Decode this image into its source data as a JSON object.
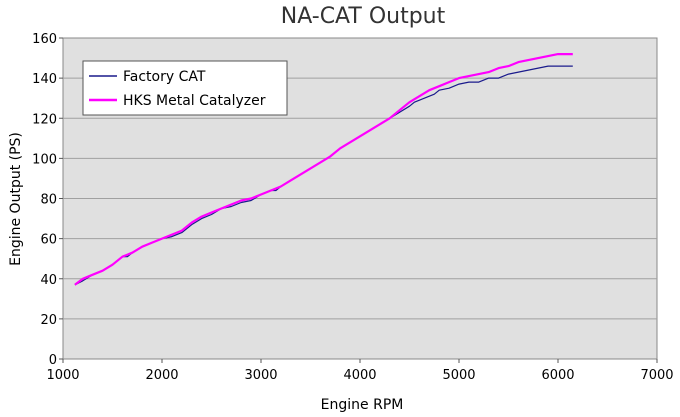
{
  "chart_data": {
    "type": "line",
    "title": "NA-CAT Output",
    "xlabel": "Engine RPM",
    "ylabel": "Engine Output (PS)",
    "xlim": [
      1000,
      7000
    ],
    "ylim": [
      0,
      160
    ],
    "xticks": [
      "1000",
      "2000",
      "3000",
      "4000",
      "5000",
      "6000",
      "7000"
    ],
    "yticks": [
      "0",
      "20",
      "40",
      "60",
      "80",
      "100",
      "120",
      "140",
      "160"
    ],
    "grid": "horizontal",
    "background": "#e0e0e0",
    "legend_position": "top-left",
    "series": [
      {
        "name": "Factory CAT",
        "color": "#1a1a8c",
        "points": [
          [
            1120,
            37
          ],
          [
            1200,
            39
          ],
          [
            1300,
            42
          ],
          [
            1400,
            44
          ],
          [
            1500,
            47
          ],
          [
            1600,
            51
          ],
          [
            1650,
            51
          ],
          [
            1700,
            53
          ],
          [
            1800,
            56
          ],
          [
            1900,
            58
          ],
          [
            2000,
            60
          ],
          [
            2100,
            61
          ],
          [
            2200,
            63
          ],
          [
            2300,
            67
          ],
          [
            2400,
            70
          ],
          [
            2500,
            72
          ],
          [
            2600,
            75
          ],
          [
            2700,
            76
          ],
          [
            2800,
            78
          ],
          [
            2900,
            79
          ],
          [
            3000,
            82
          ],
          [
            3100,
            84
          ],
          [
            3150,
            84
          ],
          [
            3200,
            86
          ],
          [
            3300,
            89
          ],
          [
            3400,
            92
          ],
          [
            3500,
            95
          ],
          [
            3600,
            98
          ],
          [
            3700,
            101
          ],
          [
            3800,
            105
          ],
          [
            3900,
            108
          ],
          [
            4000,
            111
          ],
          [
            4100,
            114
          ],
          [
            4200,
            117
          ],
          [
            4300,
            120
          ],
          [
            4400,
            123
          ],
          [
            4500,
            126
          ],
          [
            4550,
            128
          ],
          [
            4600,
            129
          ],
          [
            4700,
            131
          ],
          [
            4750,
            132
          ],
          [
            4800,
            134
          ],
          [
            4900,
            135
          ],
          [
            5000,
            137
          ],
          [
            5100,
            138
          ],
          [
            5200,
            138
          ],
          [
            5300,
            140
          ],
          [
            5400,
            140
          ],
          [
            5500,
            142
          ],
          [
            5600,
            143
          ],
          [
            5700,
            144
          ],
          [
            5800,
            145
          ],
          [
            5900,
            146
          ],
          [
            6000,
            146
          ],
          [
            6100,
            146
          ],
          [
            6150,
            146
          ]
        ]
      },
      {
        "name": "HKS Metal Catalyzer",
        "color": "#ff00ff",
        "points": [
          [
            1120,
            37
          ],
          [
            1200,
            40
          ],
          [
            1300,
            42
          ],
          [
            1400,
            44
          ],
          [
            1500,
            47
          ],
          [
            1600,
            51
          ],
          [
            1700,
            53
          ],
          [
            1800,
            56
          ],
          [
            1900,
            58
          ],
          [
            2000,
            60
          ],
          [
            2100,
            62
          ],
          [
            2200,
            64
          ],
          [
            2300,
            68
          ],
          [
            2400,
            71
          ],
          [
            2500,
            73
          ],
          [
            2600,
            75
          ],
          [
            2700,
            77
          ],
          [
            2800,
            79
          ],
          [
            2900,
            80
          ],
          [
            3000,
            82
          ],
          [
            3100,
            84
          ],
          [
            3200,
            86
          ],
          [
            3300,
            89
          ],
          [
            3400,
            92
          ],
          [
            3500,
            95
          ],
          [
            3600,
            98
          ],
          [
            3700,
            101
          ],
          [
            3800,
            105
          ],
          [
            3900,
            108
          ],
          [
            4000,
            111
          ],
          [
            4100,
            114
          ],
          [
            4200,
            117
          ],
          [
            4300,
            120
          ],
          [
            4400,
            124
          ],
          [
            4500,
            128
          ],
          [
            4600,
            131
          ],
          [
            4700,
            134
          ],
          [
            4800,
            136
          ],
          [
            4900,
            138
          ],
          [
            5000,
            140
          ],
          [
            5100,
            141
          ],
          [
            5200,
            142
          ],
          [
            5300,
            143
          ],
          [
            5400,
            145
          ],
          [
            5500,
            146
          ],
          [
            5600,
            148
          ],
          [
            5700,
            149
          ],
          [
            5800,
            150
          ],
          [
            5900,
            151
          ],
          [
            6000,
            152
          ],
          [
            6100,
            152
          ],
          [
            6150,
            152
          ]
        ]
      }
    ]
  }
}
